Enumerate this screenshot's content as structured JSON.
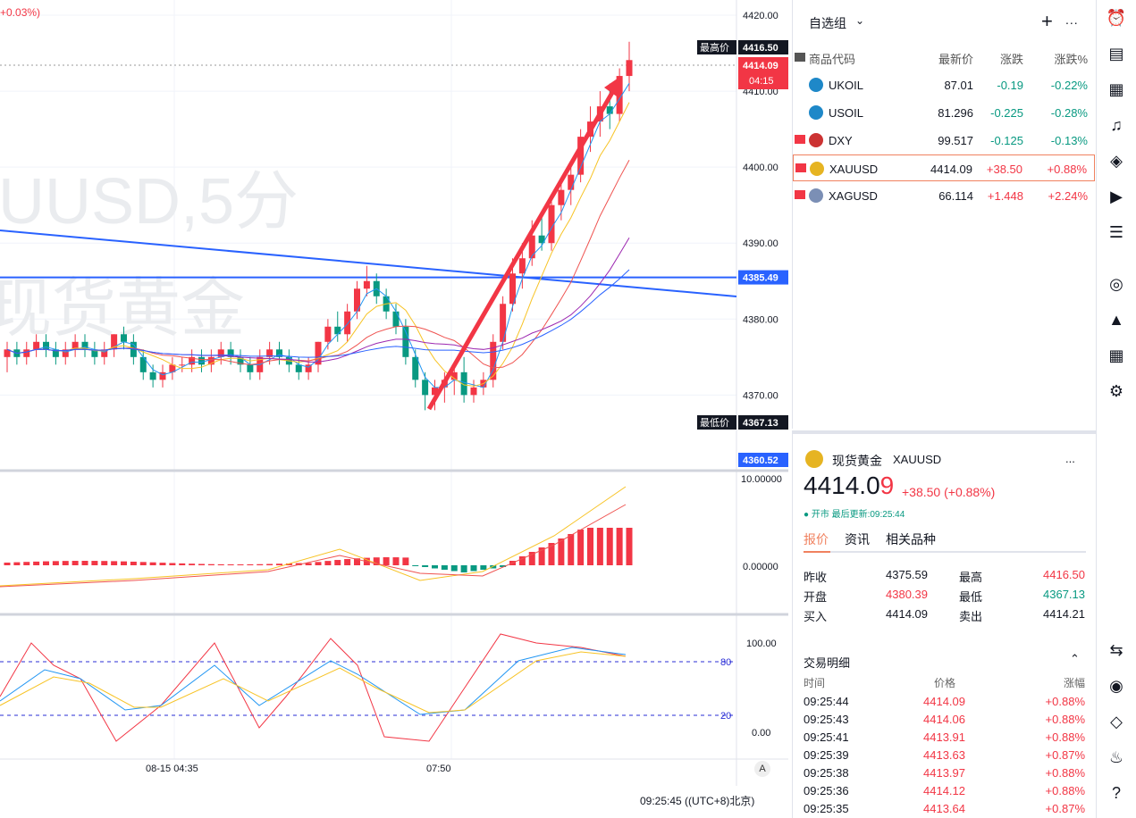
{
  "chart": {
    "change_top": "+0.03%)",
    "watermark_symbol": "UUSD,5分",
    "watermark_name": "现货黄金",
    "price_ticks": [
      "4420.00",
      "4410.00",
      "4400.00",
      "4390.00",
      "4380.00",
      "4370.00"
    ],
    "high_label": "最高价",
    "high_value": "4416.50",
    "low_label": "最低价",
    "low_value": "4367.13",
    "last_price": "4414.09",
    "countdown": "04:15",
    "hline_value": "4385.49",
    "bottom_value": "4360.52",
    "macd_ticks": [
      "10.00000",
      "0.00000"
    ],
    "stoch_ticks": [
      "100.00",
      "0.00"
    ],
    "stoch_levels": [
      "80",
      "20"
    ],
    "time_labels": [
      "08-15 04:35",
      "07:50"
    ],
    "status_time": "09:25:45 ((UTC+8)北京)",
    "auto_btn": "A",
    "colors": {
      "up": "#f23645",
      "down": "#089981",
      "hline": "#2962ff"
    }
  },
  "chart_data": {
    "type": "candlestick",
    "symbol": "XAUUSD",
    "interval": "5分",
    "ylim": [
      4360.52,
      4420
    ],
    "candles": [
      [
        4375,
        4377,
        4373,
        4376
      ],
      [
        4376,
        4377,
        4374,
        4375
      ],
      [
        4375,
        4377,
        4374,
        4376
      ],
      [
        4376,
        4378,
        4375,
        4377
      ],
      [
        4377,
        4378,
        4375,
        4376
      ],
      [
        4376,
        4377,
        4374,
        4375
      ],
      [
        4375,
        4377,
        4374,
        4376
      ],
      [
        4376,
        4378,
        4375,
        4377
      ],
      [
        4377,
        4378,
        4375,
        4376
      ],
      [
        4376,
        4377,
        4374,
        4375
      ],
      [
        4375,
        4377,
        4374,
        4376
      ],
      [
        4376,
        4378,
        4375,
        4378
      ],
      [
        4378,
        4379,
        4376,
        4377
      ],
      [
        4377,
        4378,
        4374,
        4375
      ],
      [
        4375,
        4376,
        4372,
        4373
      ],
      [
        4373,
        4374,
        4371,
        4372
      ],
      [
        4372,
        4374,
        4371,
        4373
      ],
      [
        4373,
        4375,
        4372,
        4374
      ],
      [
        4374,
        4375,
        4373,
        4374
      ],
      [
        4374,
        4376,
        4373,
        4375
      ],
      [
        4375,
        4376,
        4373,
        4374
      ],
      [
        4374,
        4376,
        4373,
        4375
      ],
      [
        4375,
        4377,
        4374,
        4376
      ],
      [
        4376,
        4377,
        4374,
        4375
      ],
      [
        4375,
        4376,
        4373,
        4374
      ],
      [
        4374,
        4375,
        4372,
        4373
      ],
      [
        4373,
        4376,
        4372,
        4375
      ],
      [
        4375,
        4377,
        4374,
        4376
      ],
      [
        4376,
        4377,
        4374,
        4375
      ],
      [
        4375,
        4376,
        4373,
        4374
      ],
      [
        4374,
        4375,
        4372,
        4373
      ],
      [
        4373,
        4375,
        4372,
        4374
      ],
      [
        4374,
        4377,
        4373,
        4377
      ],
      [
        4377,
        4380,
        4376,
        4379
      ],
      [
        4379,
        4381,
        4377,
        4378
      ],
      [
        4378,
        4382,
        4377,
        4381
      ],
      [
        4381,
        4385,
        4380,
        4384
      ],
      [
        4384,
        4387,
        4383,
        4385
      ],
      [
        4385,
        4386,
        4382,
        4383
      ],
      [
        4383,
        4384,
        4380,
        4381
      ],
      [
        4381,
        4382,
        4378,
        4379
      ],
      [
        4379,
        4380,
        4374,
        4375
      ],
      [
        4375,
        4376,
        4371,
        4372
      ],
      [
        4372,
        4373,
        4368,
        4370
      ],
      [
        4370,
        4372,
        4368,
        4371
      ],
      [
        4371,
        4373,
        4369,
        4372
      ],
      [
        4372,
        4374,
        4370,
        4373
      ],
      [
        4373,
        4375,
        4369,
        4370
      ],
      [
        4370,
        4372,
        4369,
        4371
      ],
      [
        4371,
        4373,
        4370,
        4372
      ],
      [
        4372,
        4378,
        4371,
        4377
      ],
      [
        4377,
        4383,
        4376,
        4382
      ],
      [
        4382,
        4388,
        4381,
        4386
      ],
      [
        4386,
        4390,
        4384,
        4388
      ],
      [
        4388,
        4393,
        4387,
        4391
      ],
      [
        4391,
        4394,
        4389,
        4390
      ],
      [
        4390,
        4396,
        4389,
        4395
      ],
      [
        4395,
        4398,
        4393,
        4397
      ],
      [
        4397,
        4400,
        4395,
        4399
      ],
      [
        4399,
        4405,
        4398,
        4404
      ],
      [
        4404,
        4408,
        4402,
        4406
      ],
      [
        4406,
        4410,
        4404,
        4408
      ],
      [
        4408,
        4411,
        4405,
        4407
      ],
      [
        4407,
        4413,
        4406,
        4412
      ],
      [
        4412,
        4416.5,
        4410,
        4414.09
      ]
    ],
    "annotations": [
      "最高价 4416.50",
      "最低价 4367.13",
      "4385.49",
      "4360.52"
    ]
  },
  "watchlist": {
    "title": "自选组",
    "plus": "+",
    "more": "...",
    "cols": {
      "symbol": "商品代码",
      "last": "最新价",
      "chg": "涨跌",
      "pct": "涨跌%"
    },
    "rows": [
      {
        "sym": "UKOIL",
        "last": "87.01",
        "chg": "-0.19",
        "pct": "-0.22%",
        "dir": "dn",
        "flag": false,
        "icon_color": "#1e88c8"
      },
      {
        "sym": "USOIL",
        "last": "81.296",
        "chg": "-0.225",
        "pct": "-0.28%",
        "dir": "dn",
        "flag": false,
        "icon_color": "#1e88c8"
      },
      {
        "sym": "DXY",
        "last": "99.517",
        "chg": "-0.125",
        "pct": "-0.13%",
        "dir": "dn",
        "flag": true,
        "icon_color": "#c33"
      },
      {
        "sym": "XAUUSD",
        "last": "4414.09",
        "chg": "+38.50",
        "pct": "+0.88%",
        "dir": "up",
        "flag": true,
        "icon_color": "#e6b422",
        "selected": true
      },
      {
        "sym": "XAGUSD",
        "last": "66.114",
        "chg": "+1.448",
        "pct": "+2.24%",
        "dir": "up",
        "flag": true,
        "icon_color": "#7b8fb5"
      }
    ]
  },
  "details": {
    "name": "现货黄金",
    "symbol": "XAUUSD",
    "more": "...",
    "price_main": "4414.0",
    "price_last_digit": "9",
    "change": "+38.50 (+0.88%)",
    "status": "● 开市 最后更新:09:25:44",
    "tabs": [
      "报价",
      "资讯",
      "相关品种"
    ],
    "stats": [
      {
        "k": "昨收",
        "v": "4375.59",
        "k2": "最高",
        "v2": "4416.50"
      },
      {
        "k": "开盘",
        "v": "4380.39",
        "k2": "最低",
        "v2": "4367.13"
      },
      {
        "k": "买入",
        "v": "4414.09",
        "k2": "卖出",
        "v2": "4414.21"
      }
    ],
    "trades_title": "交易明细",
    "trade_cols": [
      "时间",
      "价格",
      "涨幅"
    ],
    "trades": [
      [
        "09:25:44",
        "4414.09",
        "+0.88%"
      ],
      [
        "09:25:43",
        "4414.06",
        "+0.88%"
      ],
      [
        "09:25:41",
        "4413.91",
        "+0.88%"
      ],
      [
        "09:25:39",
        "4413.63",
        "+0.87%"
      ],
      [
        "09:25:38",
        "4413.97",
        "+0.88%"
      ],
      [
        "09:25:36",
        "4414.12",
        "+0.88%"
      ],
      [
        "09:25:35",
        "4413.64",
        "+0.87%"
      ]
    ]
  },
  "sidebar": {
    "icons": [
      "alert-icon",
      "document-icon",
      "calendar-icon",
      "bell-icon",
      "layers-icon",
      "video-icon",
      "chat-icon",
      "target-icon",
      "education-icon",
      "grid-icon",
      "network-icon",
      "pair-icon",
      "eye-icon",
      "handshake-icon",
      "headset-icon",
      "help-icon"
    ]
  }
}
